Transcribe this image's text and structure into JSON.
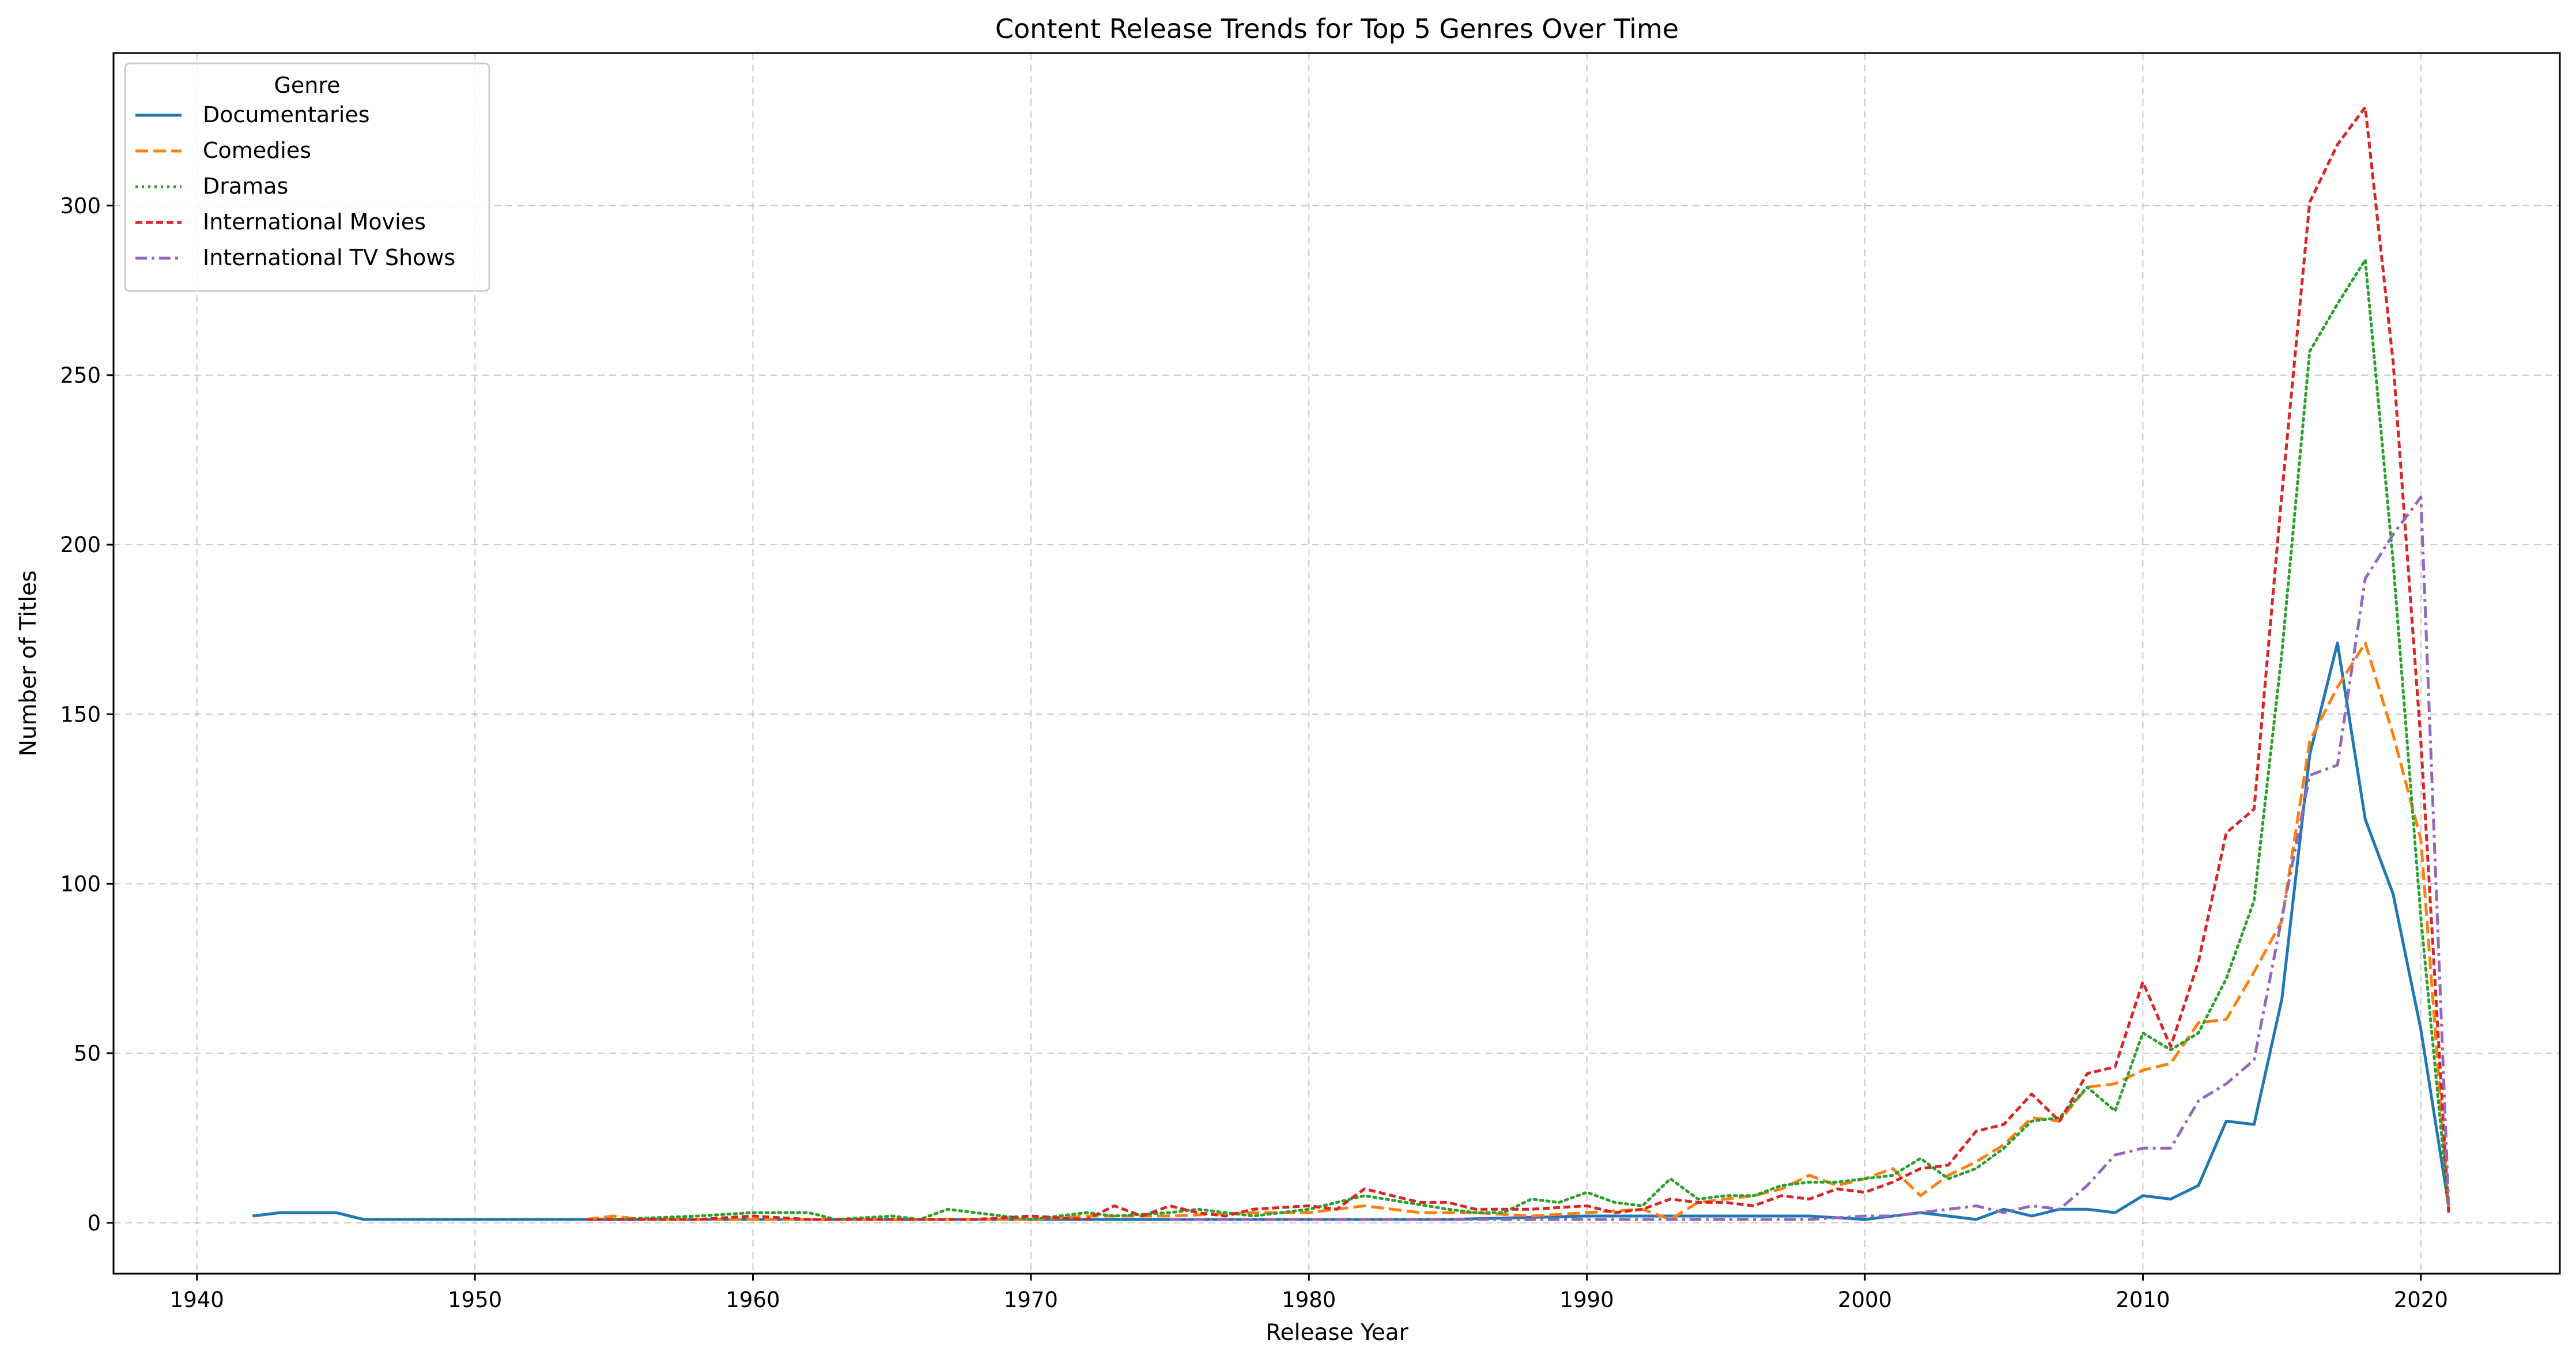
{
  "chart_data": {
    "type": "line",
    "title": "Content Release Trends for Top 5 Genres Over Time",
    "xlabel": "Release Year",
    "ylabel": "Number of Titles",
    "xlim": [
      1937,
      2025
    ],
    "ylim": [
      -15,
      345
    ],
    "xticks": [
      1940,
      1950,
      1960,
      1970,
      1980,
      1990,
      2000,
      2010,
      2020
    ],
    "yticks": [
      0,
      50,
      100,
      150,
      200,
      250,
      300
    ],
    "grid": true,
    "legend": {
      "title": "Genre",
      "placement": "top-left"
    },
    "series": [
      {
        "name": "Documentaries",
        "color": "#1f77b4",
        "dash": "solid",
        "points": [
          [
            1942,
            2
          ],
          [
            1943,
            3
          ],
          [
            1944,
            3
          ],
          [
            1945,
            3
          ],
          [
            1946,
            1
          ],
          [
            1947,
            1
          ],
          [
            1948,
            1
          ],
          [
            1949,
            1
          ],
          [
            1950,
            1
          ],
          [
            1955,
            1
          ],
          [
            1960,
            1
          ],
          [
            1965,
            1
          ],
          [
            1970,
            1
          ],
          [
            1975,
            1
          ],
          [
            1980,
            1
          ],
          [
            1985,
            1
          ],
          [
            1990,
            2
          ],
          [
            1995,
            2
          ],
          [
            1998,
            2
          ],
          [
            2000,
            1
          ],
          [
            2001,
            2
          ],
          [
            2002,
            3
          ],
          [
            2003,
            2
          ],
          [
            2004,
            1
          ],
          [
            2005,
            4
          ],
          [
            2006,
            2
          ],
          [
            2007,
            4
          ],
          [
            2008,
            4
          ],
          [
            2009,
            3
          ],
          [
            2010,
            8
          ],
          [
            2011,
            7
          ],
          [
            2012,
            11
          ],
          [
            2013,
            30
          ],
          [
            2014,
            29
          ],
          [
            2015,
            66
          ],
          [
            2016,
            138
          ],
          [
            2017,
            171
          ],
          [
            2018,
            119
          ],
          [
            2019,
            97
          ],
          [
            2020,
            57
          ],
          [
            2021,
            5
          ]
        ]
      },
      {
        "name": "Comedies",
        "color": "#ff7f0e",
        "dash": "dashed",
        "points": [
          [
            1954,
            1
          ],
          [
            1955,
            2
          ],
          [
            1956,
            1
          ],
          [
            1958,
            1
          ],
          [
            1960,
            1
          ],
          [
            1962,
            1
          ],
          [
            1965,
            1
          ],
          [
            1970,
            1
          ],
          [
            1972,
            2
          ],
          [
            1975,
            2
          ],
          [
            1978,
            3
          ],
          [
            1980,
            3
          ],
          [
            1982,
            5
          ],
          [
            1984,
            3
          ],
          [
            1986,
            3
          ],
          [
            1988,
            2
          ],
          [
            1990,
            3
          ],
          [
            1992,
            4
          ],
          [
            1993,
            1
          ],
          [
            1994,
            6
          ],
          [
            1995,
            7
          ],
          [
            1996,
            8
          ],
          [
            1997,
            10
          ],
          [
            1998,
            14
          ],
          [
            1999,
            11
          ],
          [
            2000,
            13
          ],
          [
            2001,
            16
          ],
          [
            2002,
            8
          ],
          [
            2003,
            14
          ],
          [
            2004,
            18
          ],
          [
            2005,
            23
          ],
          [
            2006,
            31
          ],
          [
            2007,
            30
          ],
          [
            2008,
            40
          ],
          [
            2009,
            41
          ],
          [
            2010,
            45
          ],
          [
            2011,
            47
          ],
          [
            2012,
            59
          ],
          [
            2013,
            60
          ],
          [
            2014,
            74
          ],
          [
            2015,
            89
          ],
          [
            2016,
            142
          ],
          [
            2017,
            158
          ],
          [
            2018,
            171
          ],
          [
            2019,
            144
          ],
          [
            2020,
            113
          ],
          [
            2021,
            4
          ]
        ]
      },
      {
        "name": "Dramas",
        "color": "#2ca02c",
        "dash": "dotted",
        "points": [
          [
            1955,
            1
          ],
          [
            1958,
            2
          ],
          [
            1960,
            3
          ],
          [
            1962,
            3
          ],
          [
            1963,
            1
          ],
          [
            1965,
            2
          ],
          [
            1966,
            1
          ],
          [
            1967,
            4
          ],
          [
            1969,
            2
          ],
          [
            1970,
            1
          ],
          [
            1972,
            3
          ],
          [
            1973,
            2
          ],
          [
            1975,
            3
          ],
          [
            1976,
            4
          ],
          [
            1978,
            2
          ],
          [
            1980,
            4
          ],
          [
            1982,
            8
          ],
          [
            1985,
            4
          ],
          [
            1986,
            3
          ],
          [
            1987,
            3
          ],
          [
            1988,
            7
          ],
          [
            1989,
            6
          ],
          [
            1990,
            9
          ],
          [
            1991,
            6
          ],
          [
            1992,
            5
          ],
          [
            1993,
            13
          ],
          [
            1994,
            7
          ],
          [
            1995,
            8
          ],
          [
            1996,
            8
          ],
          [
            1997,
            11
          ],
          [
            1998,
            12
          ],
          [
            1999,
            12
          ],
          [
            2000,
            13
          ],
          [
            2001,
            14
          ],
          [
            2002,
            19
          ],
          [
            2003,
            13
          ],
          [
            2004,
            16
          ],
          [
            2005,
            22
          ],
          [
            2006,
            30
          ],
          [
            2007,
            31
          ],
          [
            2008,
            40
          ],
          [
            2009,
            33
          ],
          [
            2010,
            56
          ],
          [
            2011,
            51
          ],
          [
            2012,
            56
          ],
          [
            2013,
            72
          ],
          [
            2014,
            95
          ],
          [
            2015,
            168
          ],
          [
            2016,
            257
          ],
          [
            2017,
            271
          ],
          [
            2018,
            284
          ],
          [
            2019,
            195
          ],
          [
            2020,
            90
          ],
          [
            2021,
            4
          ]
        ]
      },
      {
        "name": "International Movies",
        "color": "#d62728",
        "dash": "dashdense",
        "points": [
          [
            1954,
            1
          ],
          [
            1958,
            1
          ],
          [
            1960,
            2
          ],
          [
            1962,
            1
          ],
          [
            1964,
            1
          ],
          [
            1968,
            1
          ],
          [
            1970,
            2
          ],
          [
            1972,
            1
          ],
          [
            1973,
            5
          ],
          [
            1974,
            2
          ],
          [
            1975,
            5
          ],
          [
            1976,
            3
          ],
          [
            1977,
            2
          ],
          [
            1978,
            4
          ],
          [
            1980,
            5
          ],
          [
            1981,
            4
          ],
          [
            1982,
            10
          ],
          [
            1983,
            8
          ],
          [
            1984,
            6
          ],
          [
            1985,
            6
          ],
          [
            1986,
            4
          ],
          [
            1988,
            4
          ],
          [
            1990,
            5
          ],
          [
            1991,
            3
          ],
          [
            1992,
            4
          ],
          [
            1993,
            7
          ],
          [
            1994,
            6
          ],
          [
            1995,
            6
          ],
          [
            1996,
            5
          ],
          [
            1997,
            8
          ],
          [
            1998,
            7
          ],
          [
            1999,
            10
          ],
          [
            2000,
            9
          ],
          [
            2001,
            12
          ],
          [
            2002,
            16
          ],
          [
            2003,
            17
          ],
          [
            2004,
            27
          ],
          [
            2005,
            29
          ],
          [
            2006,
            38
          ],
          [
            2007,
            30
          ],
          [
            2008,
            44
          ],
          [
            2009,
            46
          ],
          [
            2010,
            71
          ],
          [
            2011,
            52
          ],
          [
            2012,
            77
          ],
          [
            2013,
            115
          ],
          [
            2014,
            122
          ],
          [
            2015,
            215
          ],
          [
            2016,
            301
          ],
          [
            2017,
            318
          ],
          [
            2018,
            329
          ],
          [
            2019,
            254
          ],
          [
            2020,
            142
          ],
          [
            2021,
            3
          ]
        ]
      },
      {
        "name": "International TV Shows",
        "color": "#9467bd",
        "dash": "dashdot",
        "points": [
          [
            1975,
            1
          ],
          [
            1980,
            1
          ],
          [
            1985,
            1
          ],
          [
            1990,
            1
          ],
          [
            1995,
            1
          ],
          [
            1998,
            1
          ],
          [
            2000,
            2
          ],
          [
            2001,
            2
          ],
          [
            2002,
            3
          ],
          [
            2003,
            4
          ],
          [
            2004,
            5
          ],
          [
            2005,
            3
          ],
          [
            2006,
            5
          ],
          [
            2007,
            4
          ],
          [
            2008,
            11
          ],
          [
            2009,
            20
          ],
          [
            2010,
            22
          ],
          [
            2011,
            22
          ],
          [
            2012,
            36
          ],
          [
            2013,
            41
          ],
          [
            2014,
            48
          ],
          [
            2015,
            90
          ],
          [
            2016,
            132
          ],
          [
            2017,
            135
          ],
          [
            2018,
            190
          ],
          [
            2019,
            203
          ],
          [
            2020,
            214
          ],
          [
            2021,
            5
          ]
        ]
      }
    ]
  }
}
